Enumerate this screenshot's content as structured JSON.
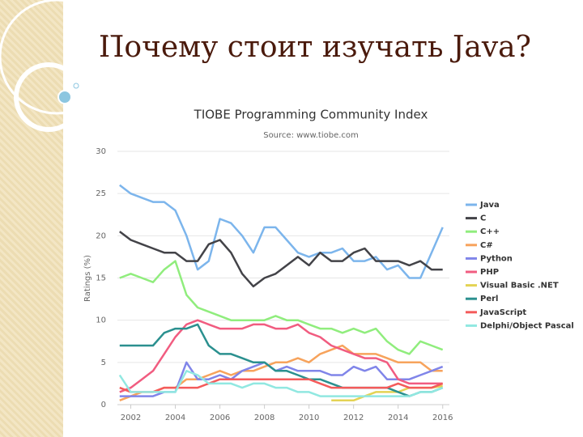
{
  "slide_title": "Почему стоит изучать Java?",
  "chart_data": {
    "type": "line",
    "title": "TIOBE Programming Community Index",
    "subtitle": "Source: www.tiobe.com",
    "y_label": "Ratings (%)",
    "x": [
      2001.5,
      2002,
      2002.5,
      2003,
      2003.5,
      2004,
      2004.5,
      2005,
      2005.5,
      2006,
      2006.5,
      2007,
      2007.5,
      2008,
      2008.5,
      2009,
      2009.5,
      2010,
      2010.5,
      2011,
      2011.5,
      2012,
      2012.5,
      2013,
      2013.5,
      2014,
      2014.5,
      2015,
      2015.5,
      2016
    ],
    "xlim": [
      2001.4,
      2016.3
    ],
    "xticks": [
      2002,
      2004,
      2006,
      2008,
      2010,
      2012,
      2014,
      2016
    ],
    "ylim": [
      0,
      30
    ],
    "yticks": [
      0,
      5,
      10,
      15,
      20,
      25,
      30
    ],
    "grid": true,
    "legend": "right",
    "series": [
      {
        "name": "Java",
        "color": "#7cb5ec",
        "values": [
          26,
          25,
          24.5,
          24,
          24,
          23,
          20,
          16,
          17,
          22,
          21.5,
          20,
          18,
          21,
          21,
          19.5,
          18,
          17.5,
          18,
          18,
          18.5,
          17,
          17,
          17.5,
          16,
          16.5,
          15,
          15,
          18,
          21
        ]
      },
      {
        "name": "C",
        "color": "#434348",
        "values": [
          20.5,
          19.5,
          19,
          18.5,
          18,
          18,
          17,
          17,
          19,
          19.5,
          18,
          15.5,
          14,
          15,
          15.5,
          16.5,
          17.5,
          16.5,
          18,
          17,
          17,
          18,
          18.5,
          17,
          17,
          17,
          16.5,
          17,
          16,
          16
        ]
      },
      {
        "name": "C++",
        "color": "#90ed7d",
        "values": [
          15,
          15.5,
          15,
          14.5,
          16,
          17,
          13,
          11.5,
          11,
          10.5,
          10,
          10,
          10,
          10,
          10.5,
          10,
          10,
          9.5,
          9,
          9,
          8.5,
          9,
          8.5,
          9,
          7.5,
          6.5,
          6,
          7.5,
          7,
          6.5
        ]
      },
      {
        "name": "C#",
        "color": "#f7a35c",
        "values": [
          0.5,
          1,
          1.5,
          1.5,
          2,
          2,
          3,
          3,
          3.5,
          4,
          3.5,
          4,
          4,
          4.5,
          5,
          5,
          5.5,
          5,
          6,
          6.5,
          7,
          6,
          6,
          6,
          5.5,
          5,
          5,
          5,
          4,
          4
        ]
      },
      {
        "name": "Python",
        "color": "#8085e9",
        "values": [
          1,
          1,
          1,
          1,
          1.5,
          1.5,
          5,
          3,
          3,
          3.5,
          3,
          4,
          4.5,
          5,
          4,
          4.5,
          4,
          4,
          4,
          3.5,
          3.5,
          4.5,
          4,
          4.5,
          3,
          3,
          3,
          3.5,
          4,
          4.5
        ]
      },
      {
        "name": "PHP",
        "color": "#f15c80",
        "values": [
          1.5,
          2,
          3,
          4,
          6,
          8,
          9.5,
          10,
          9.5,
          9,
          9,
          9,
          9.5,
          9.5,
          9,
          9,
          9.5,
          8.5,
          8,
          7,
          6.5,
          6,
          5.5,
          5.5,
          5,
          3,
          2.5,
          2.5,
          2.5,
          2.5
        ]
      },
      {
        "name": "Visual Basic .NET",
        "color": "#e4d354",
        "values": [
          null,
          null,
          null,
          null,
          null,
          null,
          null,
          null,
          null,
          null,
          null,
          null,
          null,
          null,
          null,
          null,
          null,
          null,
          null,
          0.5,
          0.5,
          0.5,
          1,
          1.5,
          1.5,
          1.5,
          2,
          2,
          2,
          2.2
        ]
      },
      {
        "name": "Perl",
        "color": "#2b908f",
        "values": [
          7,
          7,
          7,
          7,
          8.5,
          9,
          9,
          9.5,
          7,
          6,
          6,
          5.5,
          5,
          5,
          4,
          4,
          3.5,
          3,
          3,
          2.5,
          2,
          2,
          2,
          2,
          2,
          1.5,
          1,
          1.5,
          1.5,
          2
        ]
      },
      {
        "name": "JavaScript",
        "color": "#f45b5b",
        "values": [
          2,
          1.5,
          1.5,
          1.5,
          2,
          2,
          2,
          2,
          2.5,
          3,
          3,
          3,
          3,
          3,
          3,
          3,
          3,
          3,
          2.5,
          2,
          2,
          2,
          2,
          2,
          2,
          2.5,
          2,
          2,
          2,
          2.5
        ]
      },
      {
        "name": "Delphi/Object Pascal",
        "color": "#91e8e1",
        "values": [
          3.5,
          1.5,
          1.5,
          1.5,
          1.5,
          1.5,
          4,
          3.5,
          2.5,
          2.5,
          2.5,
          2,
          2.5,
          2.5,
          2,
          2,
          1.5,
          1.5,
          1,
          1,
          1,
          1,
          1,
          1,
          1,
          1,
          1,
          1.5,
          1.5,
          2
        ]
      }
    ]
  }
}
